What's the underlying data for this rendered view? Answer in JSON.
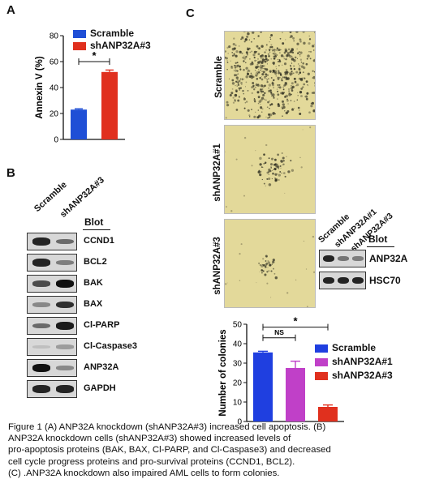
{
  "panel_a": {
    "letter": "A",
    "legend": [
      {
        "name": "Scramble",
        "color": "#1f4fd6"
      },
      {
        "name": "shANP32A#3",
        "color": "#e0301e"
      }
    ],
    "significance": "*"
  },
  "panel_b": {
    "letter": "B",
    "samples": [
      "Scramble",
      "shANP32A#3"
    ],
    "blot_header": "Blot",
    "rows": [
      {
        "label": "CCND1",
        "a": 0.9,
        "b": 0.55
      },
      {
        "label": "BCL2",
        "a": 0.9,
        "b": 0.45
      },
      {
        "label": "BAK",
        "a": 0.7,
        "b": 1.0
      },
      {
        "label": "BAX",
        "a": 0.4,
        "b": 0.85
      },
      {
        "label": "Cl-PARP",
        "a": 0.55,
        "b": 0.95
      },
      {
        "label": "Cl-Caspase3",
        "a": 0.05,
        "b": 0.3
      },
      {
        "label": "ANP32A",
        "a": 1.0,
        "b": 0.4
      },
      {
        "label": "GAPDH",
        "a": 0.9,
        "b": 0.9
      }
    ]
  },
  "panel_c": {
    "letter": "C",
    "photos": [
      {
        "label": "Scramble",
        "density": "high"
      },
      {
        "label": "shANP32A#1",
        "density": "medium"
      },
      {
        "label": "shANP32A#3",
        "density": "low"
      }
    ],
    "blot_samples": [
      "Scramble",
      "shANP32A#1",
      "shANP32A#3"
    ],
    "blot_header": "Blot",
    "blot_rows": [
      {
        "label": "ANP32A",
        "levels": [
          0.9,
          0.5,
          0.45
        ]
      },
      {
        "label": "HSC70",
        "levels": [
          0.9,
          0.9,
          0.9
        ]
      }
    ],
    "legend": [
      {
        "name": "Scramble",
        "color": "#1f3fe0"
      },
      {
        "name": "shANP32A#1",
        "color": "#c040c8"
      },
      {
        "name": "shANP32A#3",
        "color": "#e0301e"
      }
    ],
    "sig_ns": "NS",
    "sig_star": "*"
  },
  "chart_data": [
    {
      "type": "bar",
      "panel": "A",
      "categories": [
        "Scramble",
        "shANP32A#3"
      ],
      "values": [
        23,
        52
      ],
      "errors": [
        0.6,
        1.5
      ],
      "colors": [
        "#1f4fd6",
        "#e0301e"
      ],
      "ylabel": "Annexin V (%)",
      "ylim": [
        0,
        80
      ],
      "yticks": [
        0,
        20,
        40,
        60,
        80
      ]
    },
    {
      "type": "bar",
      "panel": "C",
      "categories": [
        "Scramble",
        "shANP32A#1",
        "shANP32A#3"
      ],
      "values": [
        35.5,
        27.5,
        7.5
      ],
      "errors": [
        0.6,
        3.5,
        1.0
      ],
      "colors": [
        "#1f3fe0",
        "#c040c8",
        "#e0301e"
      ],
      "ylabel": "Number of colonies",
      "ylim": [
        0,
        50
      ],
      "yticks": [
        0,
        10,
        20,
        30,
        40,
        50
      ]
    }
  ],
  "caption": [
    "Figure 1 (A) ANP32A knockdown (shANP32A#3) increased cell apoptosis. (B)",
    "ANP32A knockdown cells (shANP32A#3) showed increased levels of",
    "pro-apoptosis proteins (BAK, BAX, Cl-PARP, and Cl-Caspase3) and decreased",
    "cell cycle progress proteins and pro-survival proteins (CCND1, BCL2).",
    "(C) .ANP32A knockdown also impaired AML cells to form colonies."
  ]
}
